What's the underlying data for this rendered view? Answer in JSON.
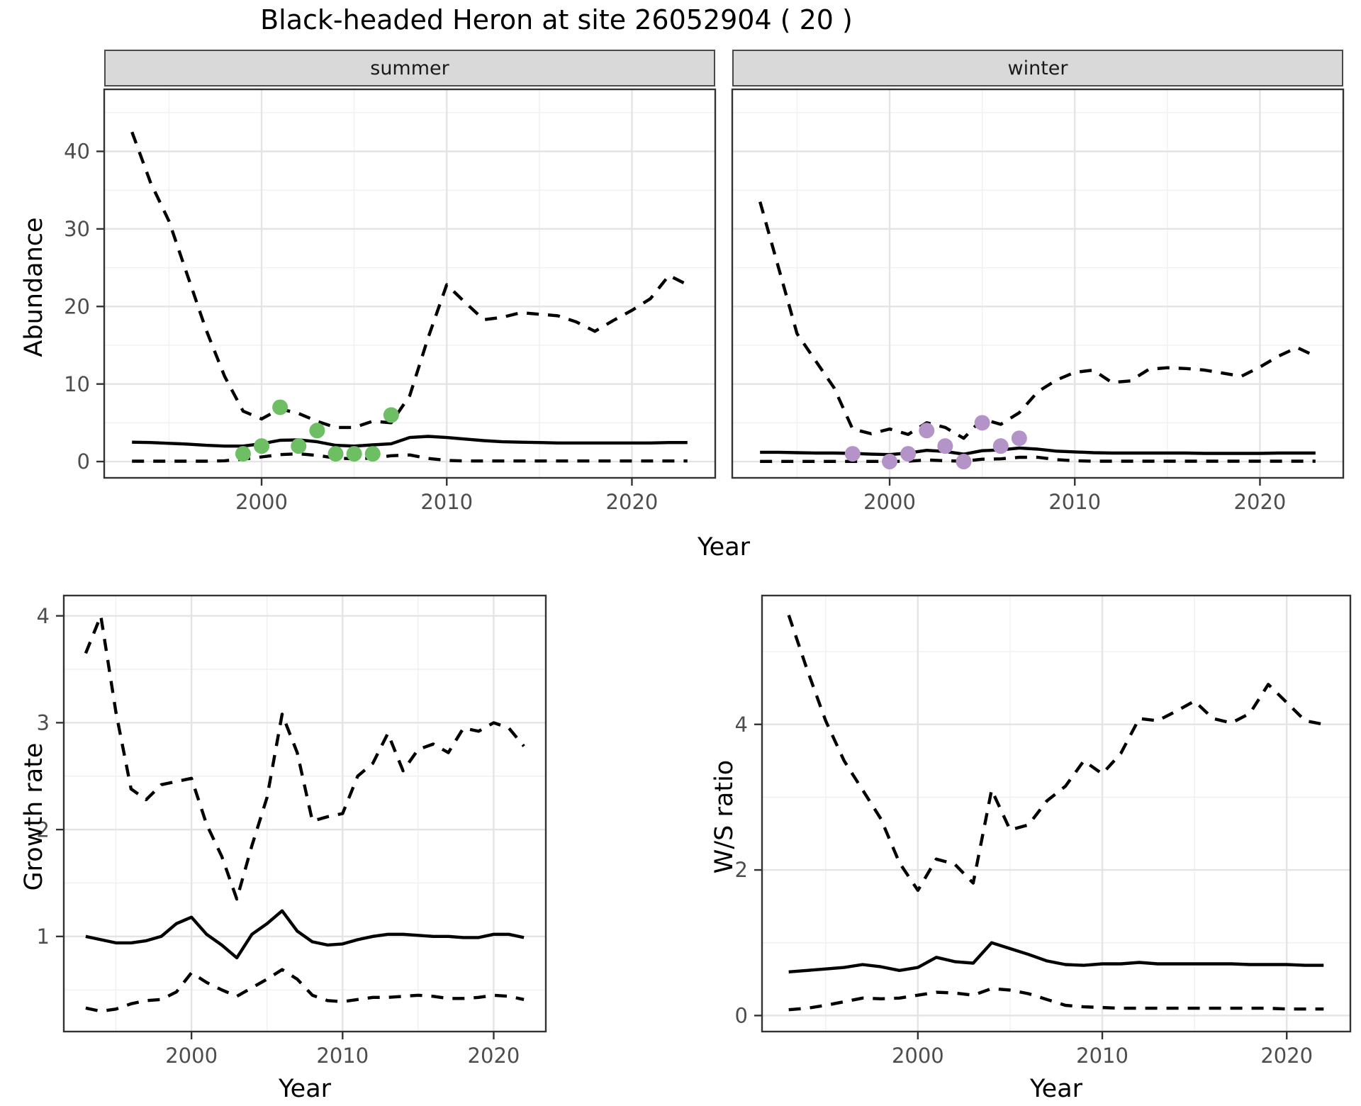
{
  "title": "Black-headed Heron at site 26052904 ( 20 )",
  "colors": {
    "summer_points": "#6EBE64",
    "winter_points": "#B494C8",
    "line": "#000000",
    "strip_bg": "#d9d9d9",
    "grid_major": "#e4e4e4",
    "grid_minor": "#f0f0f0",
    "axis_text": "#4d4d4d",
    "panel_border": "#333333"
  },
  "chart_data": [
    {
      "type": "line",
      "facet": "summer",
      "ylabel": "Abundance",
      "xlabel": "Year",
      "legend_position": "none",
      "grid": true,
      "xlim": [
        1991.5,
        2024.5
      ],
      "ylim": [
        -2.1,
        48
      ],
      "x_ticks": [
        2000,
        2010,
        2020
      ],
      "x_minor": [
        1995,
        2005,
        2015
      ],
      "y_ticks": [
        0,
        10,
        20,
        30,
        40
      ],
      "y_minor": [
        5,
        15,
        25,
        35,
        45
      ],
      "y_axis": true,
      "x": [
        1993,
        1994,
        1995,
        1996,
        1997,
        1998,
        1999,
        2000,
        2001,
        2002,
        2003,
        2004,
        2005,
        2006,
        2007,
        2008,
        2009,
        2010,
        2011,
        2012,
        2013,
        2014,
        2015,
        2016,
        2017,
        2018,
        2019,
        2020,
        2021,
        2022,
        2023
      ],
      "series": [
        {
          "name": "upper-95ci",
          "style": "dashed",
          "values": [
            42.5,
            36,
            31,
            24,
            17,
            11,
            6.5,
            5.5,
            6.8,
            6.2,
            5.2,
            4.4,
            4.4,
            5.2,
            5.0,
            8.5,
            16,
            22.8,
            20.5,
            18.3,
            18.6,
            19.2,
            19.0,
            18.8,
            18.0,
            16.8,
            18.2,
            19.5,
            21.0,
            24.0,
            22.8
          ]
        },
        {
          "name": "median",
          "style": "solid",
          "values": [
            2.5,
            2.45,
            2.35,
            2.25,
            2.1,
            2.0,
            2.0,
            2.3,
            2.75,
            2.8,
            2.55,
            2.1,
            2.0,
            2.15,
            2.3,
            3.1,
            3.25,
            3.1,
            2.9,
            2.7,
            2.55,
            2.5,
            2.45,
            2.4,
            2.4,
            2.4,
            2.4,
            2.4,
            2.4,
            2.45,
            2.45
          ]
        },
        {
          "name": "lower-95ci",
          "style": "dashed",
          "values": [
            0.05,
            0.05,
            0.05,
            0.05,
            0.05,
            0.1,
            0.3,
            0.6,
            0.9,
            1.0,
            0.8,
            0.45,
            0.35,
            0.45,
            0.75,
            0.85,
            0.4,
            0.15,
            0.08,
            0.08,
            0.08,
            0.08,
            0.08,
            0.08,
            0.08,
            0.08,
            0.08,
            0.08,
            0.08,
            0.08,
            0.08
          ]
        }
      ],
      "points": {
        "name": "summer-observed-counts",
        "color": "#6EBE64",
        "x": [
          1999,
          2000,
          2001,
          2002,
          2003,
          2004,
          2005,
          2006,
          2007
        ],
        "y": [
          1,
          2,
          7,
          2,
          4,
          1,
          1,
          1,
          6
        ]
      }
    },
    {
      "type": "line",
      "facet": "winter",
      "ylabel": null,
      "xlabel": "Year",
      "legend_position": "none",
      "grid": true,
      "xlim": [
        1991.5,
        2024.5
      ],
      "ylim": [
        -2.1,
        48
      ],
      "x_ticks": [
        2000,
        2010,
        2020
      ],
      "x_minor": [
        1995,
        2005,
        2015
      ],
      "y_ticks": [
        0,
        10,
        20,
        30,
        40
      ],
      "y_minor": [
        5,
        15,
        25,
        35,
        45
      ],
      "y_axis": false,
      "x": [
        1993,
        1994,
        1995,
        1996,
        1997,
        1998,
        1999,
        2000,
        2001,
        2002,
        2003,
        2004,
        2005,
        2006,
        2007,
        2008,
        2009,
        2010,
        2011,
        2012,
        2013,
        2014,
        2015,
        2016,
        2017,
        2018,
        2019,
        2020,
        2021,
        2022,
        2023
      ],
      "series": [
        {
          "name": "upper-95ci",
          "style": "dashed",
          "values": [
            33.5,
            25,
            16.5,
            13,
            9.5,
            4.2,
            3.6,
            4.2,
            3.5,
            5.0,
            4.4,
            3.0,
            5.5,
            4.8,
            6.3,
            9.0,
            10.5,
            11.5,
            11.8,
            10.2,
            10.4,
            11.9,
            12.1,
            12.0,
            11.8,
            11.4,
            11.0,
            12.2,
            13.6,
            14.7,
            13.6
          ]
        },
        {
          "name": "median",
          "style": "solid",
          "values": [
            1.2,
            1.2,
            1.15,
            1.1,
            1.1,
            1.05,
            0.95,
            0.9,
            1.1,
            1.45,
            1.3,
            0.95,
            1.4,
            1.5,
            1.75,
            1.6,
            1.35,
            1.25,
            1.15,
            1.1,
            1.1,
            1.1,
            1.1,
            1.1,
            1.05,
            1.05,
            1.05,
            1.05,
            1.1,
            1.1,
            1.1
          ]
        },
        {
          "name": "lower-95ci",
          "style": "dashed",
          "values": [
            0.02,
            0.02,
            0.02,
            0.02,
            0.02,
            0.02,
            0.02,
            0.02,
            0.05,
            0.2,
            0.1,
            0.05,
            0.3,
            0.35,
            0.55,
            0.55,
            0.25,
            0.1,
            0.05,
            0.05,
            0.05,
            0.05,
            0.05,
            0.05,
            0.05,
            0.05,
            0.05,
            0.05,
            0.05,
            0.05,
            0.05
          ]
        }
      ],
      "points": {
        "name": "winter-observed-counts",
        "color": "#B494C8",
        "x": [
          1998,
          2000,
          2001,
          2002,
          2003,
          2004,
          2005,
          2006,
          2007
        ],
        "y": [
          1,
          0,
          1,
          4,
          2,
          0,
          5,
          2,
          3
        ]
      }
    },
    {
      "type": "line",
      "facet": null,
      "ylabel": "Growth rate",
      "xlabel": "Year",
      "legend_position": "none",
      "grid": true,
      "xlim": [
        1991.55,
        2023.45
      ],
      "ylim": [
        0.11,
        4.19
      ],
      "x_ticks": [
        2000,
        2010,
        2020
      ],
      "x_minor": [
        1995,
        2005,
        2015
      ],
      "y_ticks": [
        1,
        2,
        3,
        4
      ],
      "y_minor": [
        0.5,
        1.5,
        2.5,
        3.5
      ],
      "y_axis": true,
      "x": [
        1993,
        1994,
        1995,
        1996,
        1997,
        1998,
        1999,
        2000,
        2001,
        2002,
        2003,
        2004,
        2005,
        2006,
        2007,
        2008,
        2009,
        2010,
        2011,
        2012,
        2013,
        2014,
        2015,
        2016,
        2017,
        2018,
        2019,
        2020,
        2021,
        2022
      ],
      "series": [
        {
          "name": "upper-95ci",
          "style": "dashed",
          "values": [
            3.65,
            4.0,
            3.1,
            2.38,
            2.28,
            2.42,
            2.45,
            2.48,
            2.05,
            1.75,
            1.35,
            1.85,
            2.3,
            3.08,
            2.72,
            2.08,
            2.12,
            2.15,
            2.5,
            2.62,
            2.9,
            2.55,
            2.75,
            2.8,
            2.72,
            2.95,
            2.92,
            3.0,
            2.95,
            2.78
          ]
        },
        {
          "name": "median",
          "style": "solid",
          "values": [
            1.0,
            0.97,
            0.94,
            0.94,
            0.96,
            1.0,
            1.12,
            1.18,
            1.02,
            0.92,
            0.8,
            1.02,
            1.12,
            1.24,
            1.05,
            0.95,
            0.92,
            0.93,
            0.97,
            1.0,
            1.02,
            1.02,
            1.01,
            1.0,
            1.0,
            0.99,
            0.99,
            1.02,
            1.02,
            0.99
          ]
        },
        {
          "name": "lower-95ci",
          "style": "dashed",
          "values": [
            0.33,
            0.3,
            0.32,
            0.37,
            0.4,
            0.41,
            0.48,
            0.66,
            0.57,
            0.5,
            0.44,
            0.52,
            0.6,
            0.69,
            0.6,
            0.45,
            0.4,
            0.39,
            0.41,
            0.43,
            0.43,
            0.44,
            0.45,
            0.44,
            0.42,
            0.42,
            0.43,
            0.45,
            0.44,
            0.41
          ]
        }
      ],
      "points": null
    },
    {
      "type": "line",
      "facet": null,
      "ylabel": "W/S ratio",
      "xlabel": "Year",
      "legend_position": "none",
      "grid": true,
      "xlim": [
        1991.55,
        2023.45
      ],
      "ylim": [
        -0.22,
        5.77
      ],
      "x_ticks": [
        2000,
        2010,
        2020
      ],
      "x_minor": [
        1995,
        2005,
        2015
      ],
      "y_ticks": [
        0,
        2,
        4
      ],
      "y_minor": [
        1,
        3,
        5
      ],
      "y_axis": true,
      "x": [
        1993,
        1994,
        1995,
        1996,
        1997,
        1998,
        1999,
        2000,
        2001,
        2002,
        2003,
        2004,
        2005,
        2006,
        2007,
        2008,
        2009,
        2010,
        2011,
        2012,
        2013,
        2014,
        2015,
        2016,
        2017,
        2018,
        2019,
        2020,
        2021,
        2022
      ],
      "series": [
        {
          "name": "upper-95ci",
          "style": "dashed",
          "values": [
            5.5,
            4.75,
            4.05,
            3.5,
            3.1,
            2.7,
            2.1,
            1.72,
            2.15,
            2.08,
            1.82,
            3.1,
            2.55,
            2.62,
            2.95,
            3.15,
            3.5,
            3.32,
            3.6,
            4.08,
            4.05,
            4.18,
            4.32,
            4.08,
            4.02,
            4.15,
            4.55,
            4.3,
            4.05,
            4.0
          ]
        },
        {
          "name": "median",
          "style": "solid",
          "values": [
            0.6,
            0.62,
            0.64,
            0.66,
            0.7,
            0.67,
            0.62,
            0.66,
            0.8,
            0.74,
            0.72,
            1.0,
            0.92,
            0.84,
            0.75,
            0.7,
            0.69,
            0.71,
            0.71,
            0.73,
            0.71,
            0.71,
            0.71,
            0.71,
            0.71,
            0.7,
            0.7,
            0.7,
            0.69,
            0.69
          ]
        },
        {
          "name": "lower-95ci",
          "style": "dashed",
          "values": [
            0.08,
            0.1,
            0.14,
            0.19,
            0.24,
            0.23,
            0.24,
            0.28,
            0.32,
            0.31,
            0.28,
            0.37,
            0.35,
            0.3,
            0.22,
            0.14,
            0.12,
            0.11,
            0.1,
            0.1,
            0.1,
            0.1,
            0.1,
            0.1,
            0.1,
            0.1,
            0.1,
            0.09,
            0.09,
            0.09
          ]
        }
      ],
      "points": null
    }
  ]
}
